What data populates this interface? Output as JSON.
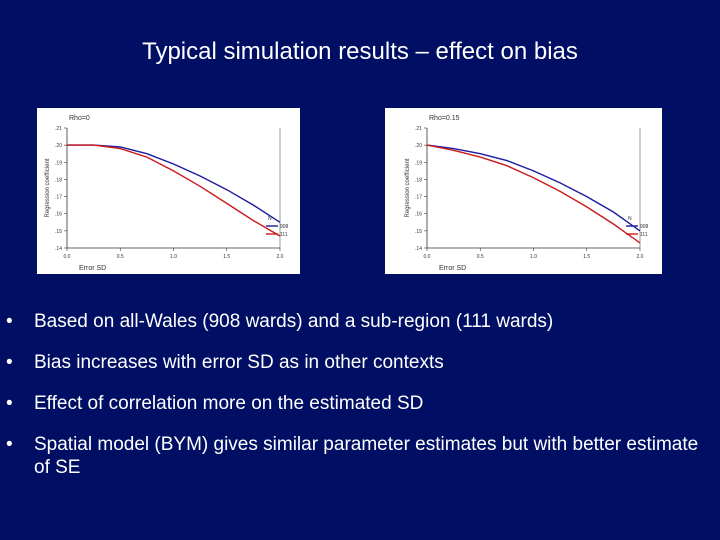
{
  "title": "Typical simulation results – effect on bias",
  "bullets": [
    "Based on all-Wales (908 wards) and a sub-region (111 wards)",
    "Bias increases with error SD as in other contexts",
    "Effect of correlation more on the estimated SD",
    "Spatial model (BYM) gives similar parameter estimates but with better estimate of SE"
  ],
  "colors": {
    "background": "#000f63",
    "text": "#ffffff",
    "series_908": "#1c1ca0",
    "series_111": "#cc1a1a"
  },
  "chart_data": [
    {
      "type": "line",
      "title": "Rho=0",
      "xlabel": "Error SD",
      "ylabel": "Regression coefficient",
      "xlim": [
        0,
        2
      ],
      "ylim": [
        0.14,
        0.21
      ],
      "xticks": [
        "0.0",
        "0.5",
        "1.0",
        "1.5",
        "2.0"
      ],
      "yticks": [
        ".21",
        ".20",
        ".19",
        ".18",
        ".17",
        ".16",
        ".15",
        ".14"
      ],
      "legend_title": "N",
      "legend_position": "bottom-right",
      "series": [
        {
          "name": "908",
          "x": [
            0,
            0.25,
            0.5,
            0.75,
            1.0,
            1.25,
            1.5,
            1.75,
            2.0
          ],
          "y": [
            0.2,
            0.2,
            0.199,
            0.195,
            0.189,
            0.182,
            0.174,
            0.165,
            0.155
          ]
        },
        {
          "name": "111",
          "x": [
            0,
            0.25,
            0.5,
            0.75,
            1.0,
            1.25,
            1.5,
            1.75,
            2.0
          ],
          "y": [
            0.2,
            0.2,
            0.198,
            0.193,
            0.185,
            0.176,
            0.166,
            0.156,
            0.147
          ]
        }
      ]
    },
    {
      "type": "line",
      "title": "Rho=0.15",
      "xlabel": "Error SD",
      "ylabel": "Regression coefficient",
      "xlim": [
        0,
        2
      ],
      "ylim": [
        0.14,
        0.21
      ],
      "xticks": [
        "0.0",
        "0.5",
        "1.0",
        "1.5",
        "2.0"
      ],
      "yticks": [
        ".21",
        ".20",
        ".19",
        ".18",
        ".17",
        ".16",
        ".15",
        ".14"
      ],
      "legend_title": "N",
      "legend_position": "bottom-right",
      "series": [
        {
          "name": "908",
          "x": [
            0,
            0.25,
            0.5,
            0.75,
            1.0,
            1.25,
            1.5,
            1.75,
            2.0
          ],
          "y": [
            0.2,
            0.198,
            0.195,
            0.191,
            0.185,
            0.178,
            0.17,
            0.161,
            0.15
          ]
        },
        {
          "name": "111",
          "x": [
            0,
            0.25,
            0.5,
            0.75,
            1.0,
            1.25,
            1.5,
            1.75,
            2.0
          ],
          "y": [
            0.2,
            0.197,
            0.193,
            0.188,
            0.181,
            0.173,
            0.164,
            0.154,
            0.143
          ]
        }
      ]
    }
  ]
}
